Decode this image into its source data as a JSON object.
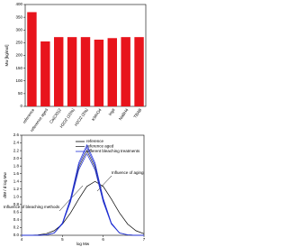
{
  "chart_data": [
    {
      "type": "bar",
      "ylabel": "Mw [kg/mol]",
      "categories": [
        "reference",
        "reference aged",
        "Ca(ClO)2",
        "H2O2 (15%)",
        "H2O2 (3%)",
        "KMnO4",
        "Ingit",
        "NaBH4",
        "TBAB"
      ],
      "values": [
        370,
        255,
        272,
        272,
        272,
        262,
        268,
        272,
        272
      ],
      "color": "#e8141c",
      "ylim": [
        0,
        400
      ],
      "yticks": [
        0,
        50,
        100,
        150,
        200,
        250,
        300,
        350,
        400
      ]
    },
    {
      "type": "line",
      "xlabel": "log Mw",
      "ylabel": "dW / d log Mw",
      "x": [
        4.0,
        4.2,
        4.4,
        4.6,
        4.8,
        5.0,
        5.2,
        5.4,
        5.6,
        5.8,
        6.0,
        6.2,
        6.4,
        6.6,
        6.8,
        7.0
      ],
      "series": [
        {
          "name": "reference",
          "color": "#000000",
          "values": [
            0,
            0,
            0.01,
            0.04,
            0.12,
            0.29,
            0.58,
            0.94,
            1.27,
            1.4,
            1.27,
            0.94,
            0.58,
            0.29,
            0.12,
            0.04
          ]
        },
        {
          "name": "reference aged",
          "color": "#333333",
          "values": [
            0,
            0,
            0,
            0.01,
            0.06,
            0.3,
            0.9,
            1.76,
            2.2,
            1.76,
            0.9,
            0.3,
            0.06,
            0.01,
            0,
            0
          ]
        },
        {
          "name": "different bleaching treatments",
          "color": "#1f2fd6",
          "values": [
            0,
            0,
            0,
            0.01,
            0.06,
            0.32,
            0.96,
            1.88,
            2.35,
            1.88,
            0.96,
            0.32,
            0.06,
            0.01,
            0,
            0
          ]
        },
        {
          "color": "#1f2fd6",
          "values": [
            0,
            0,
            0,
            0.01,
            0.06,
            0.31,
            0.93,
            1.82,
            2.28,
            1.82,
            0.93,
            0.31,
            0.06,
            0.01,
            0,
            0
          ]
        },
        {
          "color": "#1f2fd6",
          "values": [
            0,
            0,
            0,
            0.01,
            0.06,
            0.29,
            0.87,
            1.7,
            2.12,
            1.7,
            0.87,
            0.29,
            0.06,
            0.01,
            0,
            0
          ]
        }
      ],
      "xlim": [
        4,
        7
      ],
      "xticks": [
        4,
        5,
        6,
        7
      ],
      "ylim": [
        0,
        2.6
      ],
      "yticks": [
        {
          "value": 0,
          "label": "0.0"
        },
        0.2,
        0.4,
        0.6,
        0.8,
        {
          "value": 1,
          "label": "1.0"
        },
        1.2,
        1.4,
        1.6,
        1.8,
        {
          "value": 2,
          "label": "2.0"
        },
        2.2,
        2.4,
        2.6
      ],
      "annotations": [
        "Influence of bleaching methods",
        "Influence of aging"
      ]
    }
  ]
}
